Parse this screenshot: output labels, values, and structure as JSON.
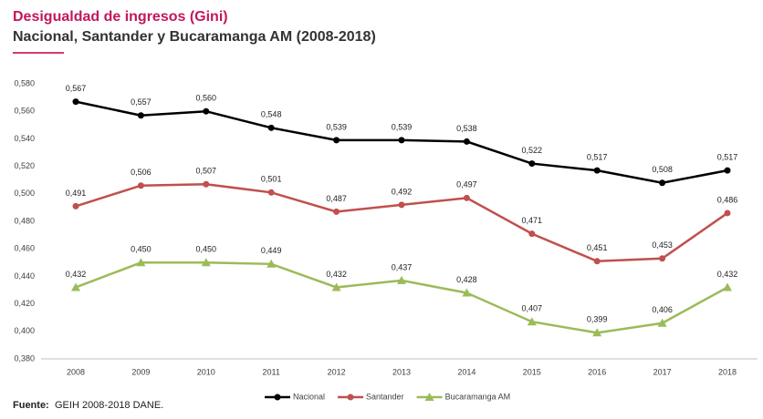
{
  "chart_data": {
    "type": "line",
    "title": "Desigualdad de ingresos (Gini)",
    "subtitle": "Nacional, Santander y Bucaramanga AM (2008-2018)",
    "categories": [
      "2008",
      "2009",
      "2010",
      "2011",
      "2012",
      "2013",
      "2014",
      "2015",
      "2016",
      "2017",
      "2018"
    ],
    "series": [
      {
        "name": "Nacional",
        "color": "#000000",
        "marker": "circle",
        "values": [
          0.567,
          0.557,
          0.56,
          0.548,
          0.539,
          0.539,
          0.538,
          0.522,
          0.517,
          0.508,
          0.517
        ],
        "value_labels": [
          "0,567",
          "0,557",
          "0,560",
          "0,548",
          "0,539",
          "0,539",
          "0,538",
          "0,522",
          "0,517",
          "0,508",
          "0,517"
        ]
      },
      {
        "name": "Santander",
        "color": "#c0504d",
        "marker": "circle",
        "values": [
          0.491,
          0.506,
          0.507,
          0.501,
          0.487,
          0.492,
          0.497,
          0.471,
          0.451,
          0.453,
          0.486
        ],
        "value_labels": [
          "0,491",
          "0,506",
          "0,507",
          "0,501",
          "0,487",
          "0,492",
          "0,497",
          "0,471",
          "0,451",
          "0,453",
          "0,486"
        ]
      },
      {
        "name": "Bucaramanga AM",
        "color": "#9bbb59",
        "marker": "triangle",
        "values": [
          0.432,
          0.45,
          0.45,
          0.449,
          0.432,
          0.437,
          0.428,
          0.407,
          0.399,
          0.406,
          0.432
        ],
        "value_labels": [
          "0,432",
          "0,450",
          "0,450",
          "0,449",
          "0,432",
          "0,437",
          "0,428",
          "0,407",
          "0,399",
          "0,406",
          "0,432"
        ]
      }
    ],
    "ylim": [
      0.38,
      0.58
    ],
    "yticks": [
      {
        "value": 0.38,
        "label": "0,380"
      },
      {
        "value": 0.4,
        "label": "0,400"
      },
      {
        "value": 0.42,
        "label": "0,420"
      },
      {
        "value": 0.44,
        "label": "0,440"
      },
      {
        "value": 0.46,
        "label": "0,460"
      },
      {
        "value": 0.48,
        "label": "0,480"
      },
      {
        "value": 0.5,
        "label": "0,500"
      },
      {
        "value": 0.52,
        "label": "0,520"
      },
      {
        "value": 0.54,
        "label": "0,540"
      },
      {
        "value": 0.56,
        "label": "0,560"
      },
      {
        "value": 0.58,
        "label": "0,580"
      }
    ],
    "grid": false,
    "legend": "bottom",
    "source_label": "Fuente:",
    "source": "GEIH 2008-2018 DANE."
  }
}
